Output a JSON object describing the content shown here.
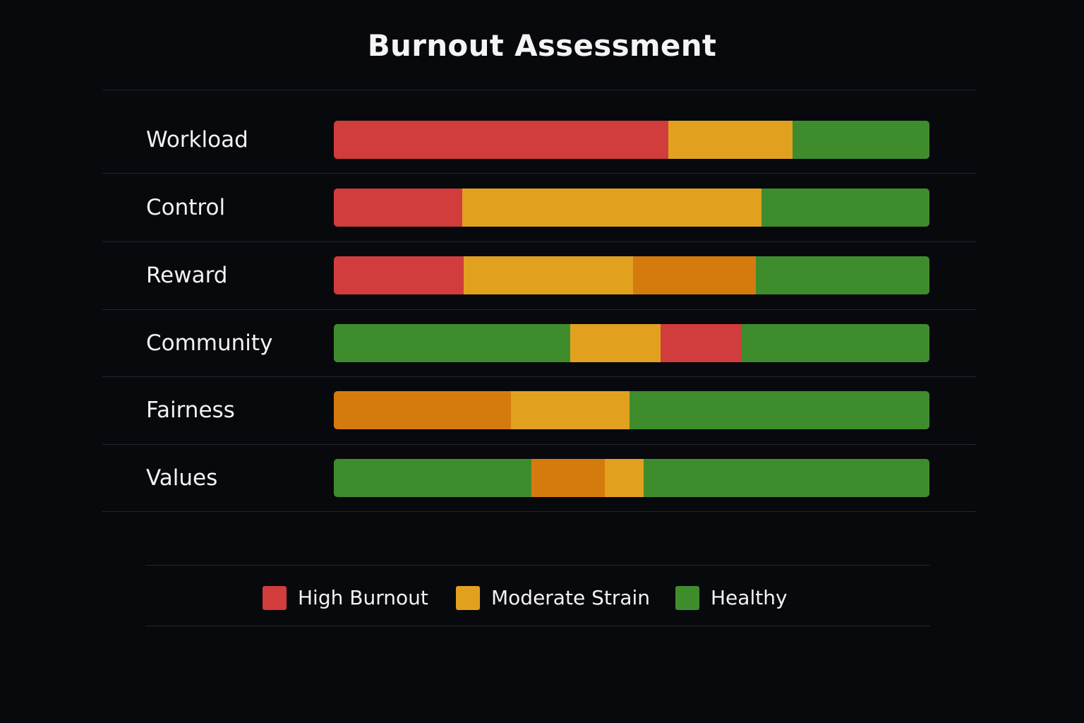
{
  "chart_data": {
    "type": "bar",
    "orientation": "horizontal",
    "stacked": true,
    "title": "Burnout Assessment",
    "xlim": [
      0,
      100
    ],
    "grid": false,
    "legend_position": "bottom",
    "colors": {
      "high": "#d13c3c",
      "moderate": "#e1a11f",
      "elevated": "#d57b0e",
      "healthy": "#3f8c2d"
    },
    "categories": [
      "Workload",
      "Control",
      "Reward",
      "Community",
      "Fairness",
      "Values"
    ],
    "rows": [
      {
        "label": "Workload",
        "segments": [
          {
            "level": "high",
            "value": 56.2
          },
          {
            "level": "moderate",
            "value": 20.8
          },
          {
            "level": "healthy",
            "value": 23.0
          }
        ]
      },
      {
        "label": "Control",
        "segments": [
          {
            "level": "high",
            "value": 21.6
          },
          {
            "level": "moderate",
            "value": 50.2
          },
          {
            "level": "healthy",
            "value": 28.2
          }
        ]
      },
      {
        "label": "Reward",
        "segments": [
          {
            "level": "high",
            "value": 21.8
          },
          {
            "level": "moderate",
            "value": 28.4
          },
          {
            "level": "elevated",
            "value": 20.7
          },
          {
            "level": "healthy",
            "value": 29.1
          }
        ]
      },
      {
        "label": "Community",
        "segments": [
          {
            "level": "healthy",
            "value": 39.7
          },
          {
            "level": "moderate",
            "value": 15.2
          },
          {
            "level": "high",
            "value": 13.6
          },
          {
            "level": "healthy",
            "value": 31.5
          }
        ]
      },
      {
        "label": "Fairness",
        "segments": [
          {
            "level": "elevated",
            "value": 29.7
          },
          {
            "level": "moderate",
            "value": 20.0
          },
          {
            "level": "healthy",
            "value": 50.3
          }
        ]
      },
      {
        "label": "Values",
        "segments": [
          {
            "level": "healthy",
            "value": 33.2
          },
          {
            "level": "elevated",
            "value": 12.3
          },
          {
            "level": "moderate",
            "value": 6.5
          },
          {
            "level": "healthy",
            "value": 48.0
          }
        ]
      }
    ],
    "legend": [
      {
        "label": "High Burnout",
        "level": "high"
      },
      {
        "label": "Moderate Strain",
        "level": "moderate"
      },
      {
        "label": "Healthy",
        "level": "healthy"
      }
    ]
  }
}
